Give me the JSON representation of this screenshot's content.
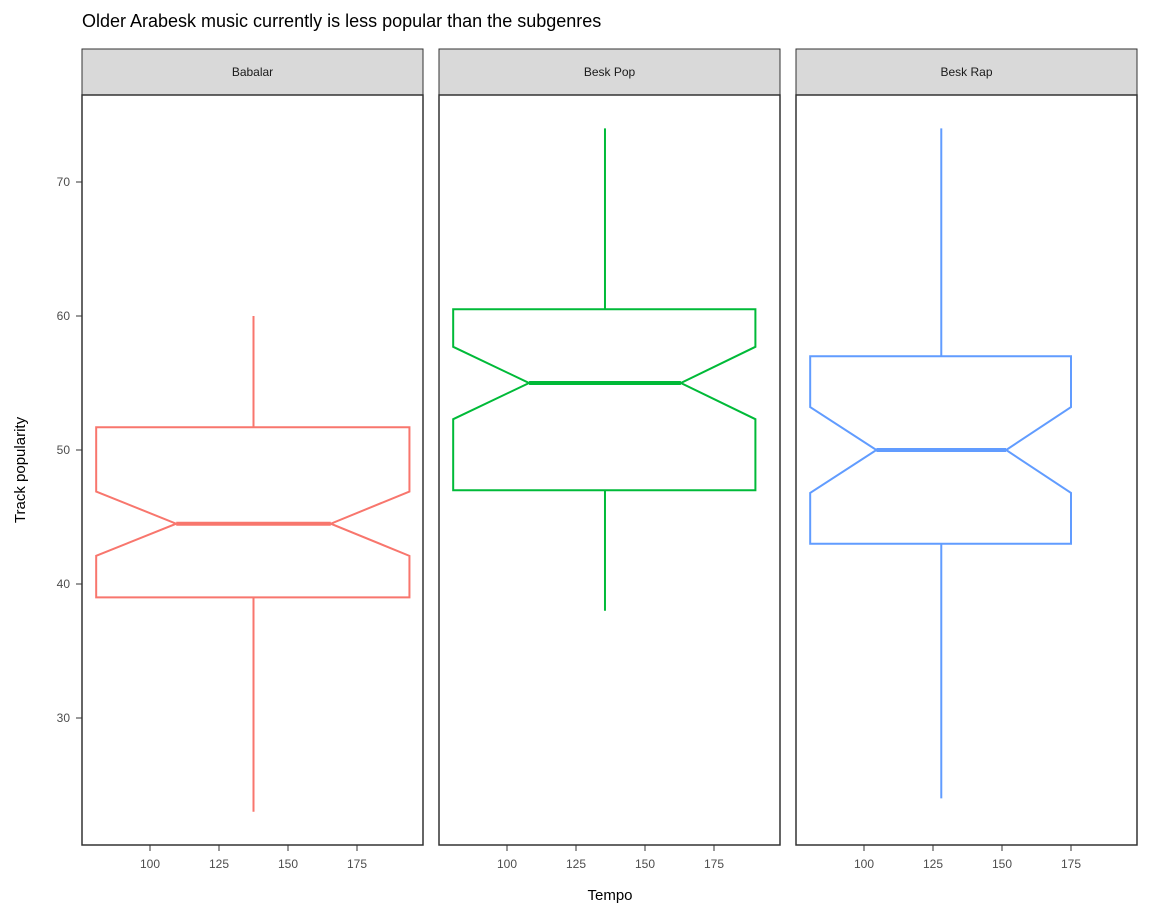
{
  "chart_data": {
    "type": "boxplot",
    "title": "Older Arabesk music currently is less popular than the subgenres",
    "xlabel": "Tempo",
    "ylabel": "Track popularity",
    "x_ticks": [
      100,
      125,
      150,
      175
    ],
    "xlim": [
      75,
      199
    ],
    "y_ticks": [
      30,
      40,
      50,
      60,
      70
    ],
    "ylim": [
      21,
      76.5
    ],
    "grid": false,
    "notched": true,
    "legend": "none",
    "facets": [
      {
        "label": "Babalar",
        "color": "#F8766D",
        "x_left": 80.5,
        "x_right": 194,
        "x_center": 137.5,
        "notch_left": 109.5,
        "notch_right": 165.5,
        "stats": {
          "whisker_low": 23,
          "q1": 39,
          "median": 44.5,
          "q3": 51.7,
          "whisker_high": 60,
          "notch_low": 42.1,
          "notch_high": 46.9
        }
      },
      {
        "label": "Besk Pop",
        "color": "#00BA38",
        "x_left": 80.5,
        "x_right": 190,
        "x_center": 135.5,
        "notch_left": 108,
        "notch_right": 163,
        "stats": {
          "whisker_low": 38,
          "q1": 47,
          "median": 55,
          "q3": 60.5,
          "whisker_high": 74,
          "notch_low": 52.3,
          "notch_high": 57.7
        }
      },
      {
        "label": "Besk Rap",
        "color": "#619CFF",
        "x_left": 80.5,
        "x_right": 175,
        "x_center": 128,
        "notch_left": 104.5,
        "notch_right": 151.5,
        "stats": {
          "whisker_low": 24,
          "q1": 43,
          "median": 50,
          "q3": 57,
          "whisker_high": 74,
          "notch_low": 46.8,
          "notch_high": 53.2
        }
      }
    ]
  }
}
